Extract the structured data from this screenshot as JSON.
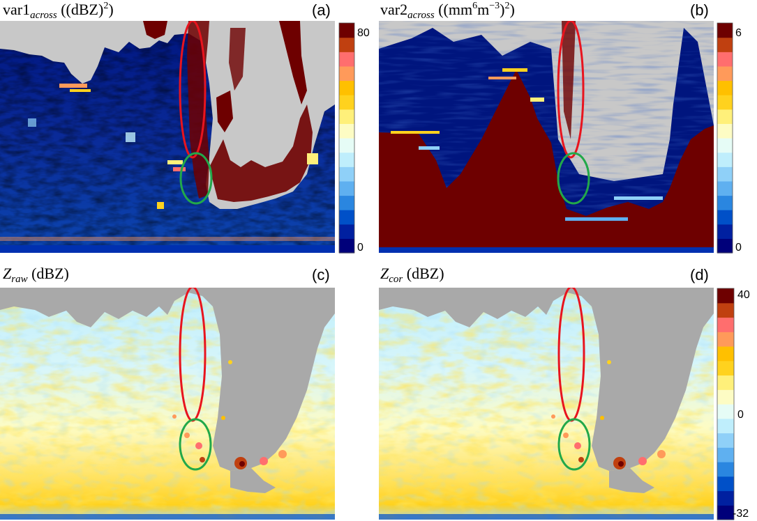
{
  "chart_data": [
    {
      "type": "heatmap",
      "panel_label": "(a)",
      "title_main": "var1",
      "title_sub": "across",
      "title_unit": " ((dBZ)",
      "title_unit_sup": "2",
      "title_unit_tail": ")",
      "colorbar": {
        "min": 0,
        "max": 80,
        "tick_labels": [
          "80",
          "0"
        ]
      },
      "annotations": [
        "red ellipse",
        "green ellipse"
      ]
    },
    {
      "type": "heatmap",
      "panel_label": "(b)",
      "title_main": "var2",
      "title_sub": "across",
      "title_unit": " ((mm",
      "title_unit_sup": "6",
      "title_unit_mid": "m",
      "title_unit_sup2": "−3",
      "title_unit_tail": ")",
      "title_unit_sup3": "2",
      "title_unit_tail2": ")",
      "colorbar": {
        "min": 0,
        "max": 6,
        "tick_labels": [
          "6",
          "0"
        ]
      },
      "annotations": [
        "red ellipse",
        "green ellipse"
      ]
    },
    {
      "type": "heatmap",
      "panel_label": "(c)",
      "title_main": "Z",
      "title_sub": "raw",
      "title_unit": " (dBZ)",
      "annotations": [
        "red ellipse",
        "green ellipse"
      ]
    },
    {
      "type": "heatmap",
      "panel_label": "(d)",
      "title_main": "Z",
      "title_sub": "cor",
      "title_unit": " (dBZ)",
      "colorbar": {
        "min": -32,
        "max": 40,
        "tick_labels": [
          "40",
          "0",
          "-32"
        ]
      },
      "annotations": [
        "red ellipse",
        "green ellipse"
      ]
    }
  ],
  "colors": {
    "colorbar_steps": [
      "#00007a",
      "#0020a0",
      "#0050c8",
      "#2a86e0",
      "#5fb0f0",
      "#8fd0f8",
      "#bfeefc",
      "#e6fcf6",
      "#fdfcc4",
      "#fff07a",
      "#ffd21e",
      "#ffc000",
      "#ff9a5a",
      "#ff6e6e",
      "#c04010",
      "#6e0000"
    ],
    "missing": "#c8c8c8",
    "missing_dark": "#a9a9a9",
    "ellipse_red": "#e8141e",
    "ellipse_green": "#22a84a"
  }
}
